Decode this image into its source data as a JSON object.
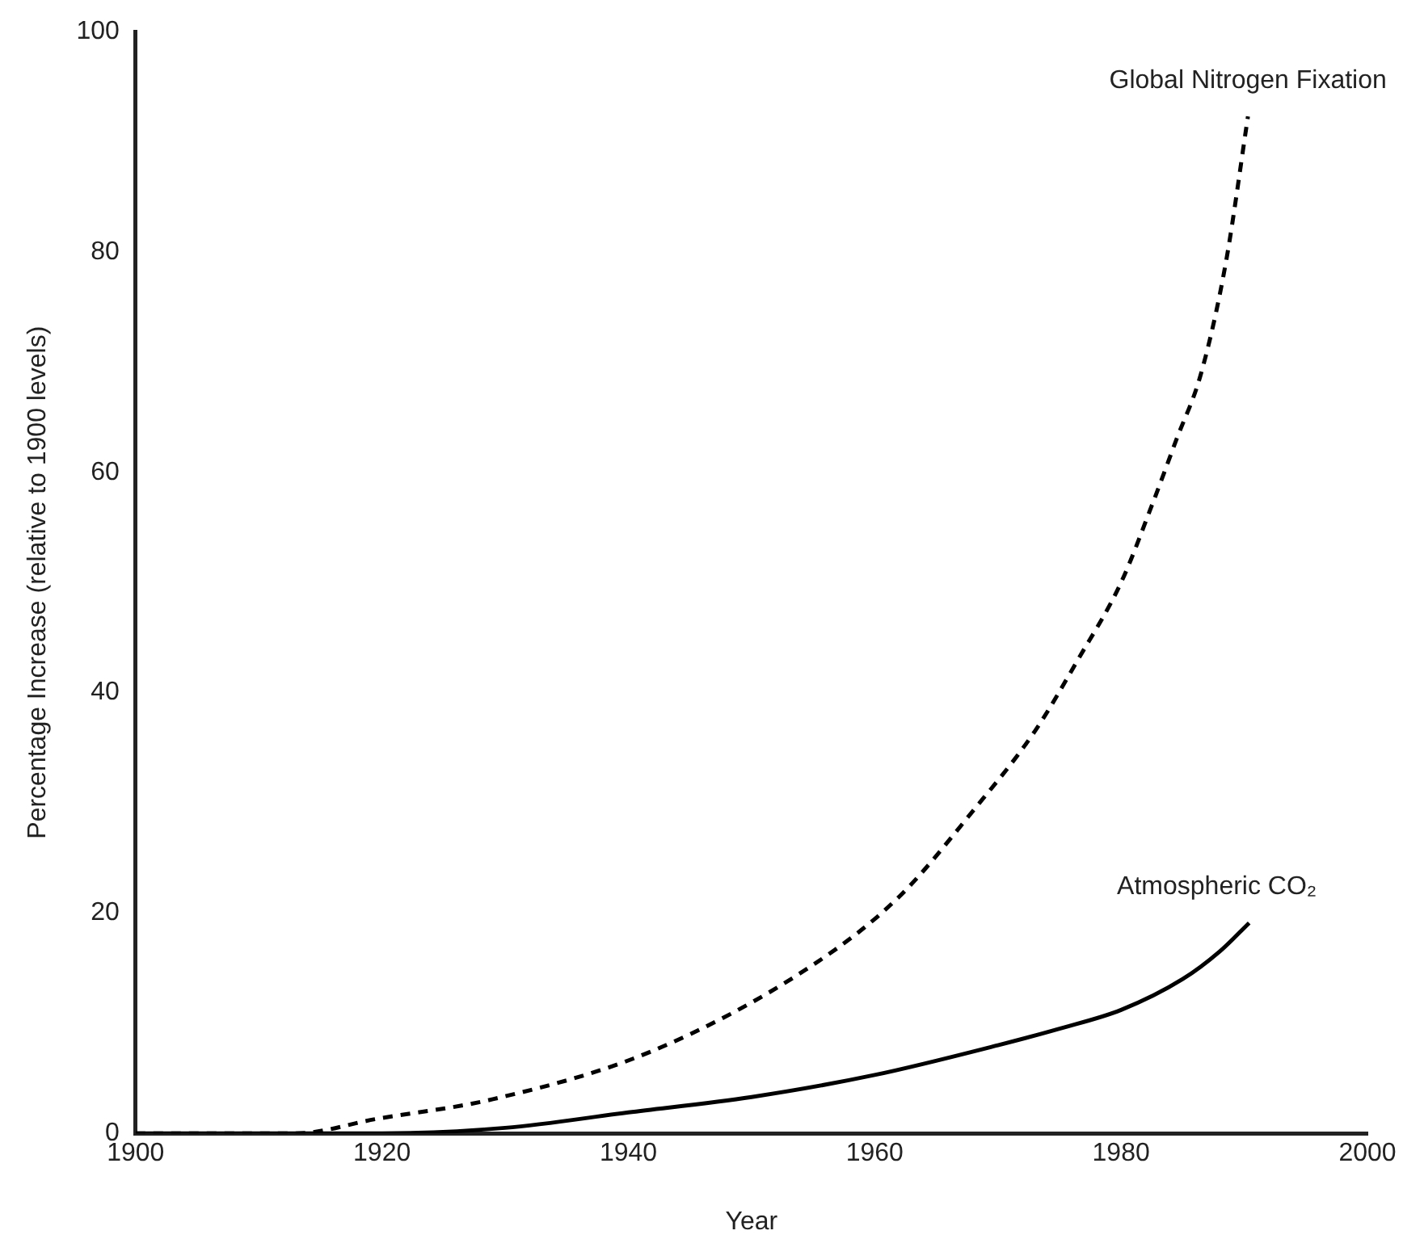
{
  "chart_data": {
    "type": "line",
    "xlabel": "Year",
    "ylabel": "Percentage Increase (relative to 1900 levels)",
    "xlim": [
      1900,
      2000
    ],
    "xticks": [
      1900,
      1920,
      1940,
      1960,
      1980,
      2000
    ],
    "ylim": [
      0,
      100
    ],
    "yticks": [
      0,
      20,
      40,
      60,
      80,
      100
    ],
    "grid": false,
    "legend": false,
    "marker": "none",
    "series": [
      {
        "name": "Global Nitrogen Fixation",
        "color": "#000000",
        "line_style": "dashed",
        "x": [
          1900,
          1913,
          1919.5,
          1929,
          1942,
          1955,
          1962,
          1968,
          1973,
          1976.5,
          1980,
          1982.5,
          1984.5,
          1986.5,
          1988.5,
          1990.3
        ],
        "values": [
          0,
          0,
          1.3,
          3.1,
          7.5,
          15.3,
          21.5,
          29.3,
          36.5,
          43,
          50,
          57,
          63,
          69,
          79,
          92.3
        ]
      },
      {
        "name": "Atmospheric CO₂",
        "color": "#000000",
        "line_style": "solid",
        "x": [
          1900,
          1910,
          1920,
          1930,
          1940,
          1950,
          1960,
          1970,
          1975,
          1980,
          1985,
          1988,
          1990.4
        ],
        "values": [
          0,
          0,
          0,
          0.5,
          1.9,
          3.3,
          5.3,
          8,
          9.5,
          11.2,
          14,
          16.5,
          19.1
        ]
      }
    ]
  }
}
